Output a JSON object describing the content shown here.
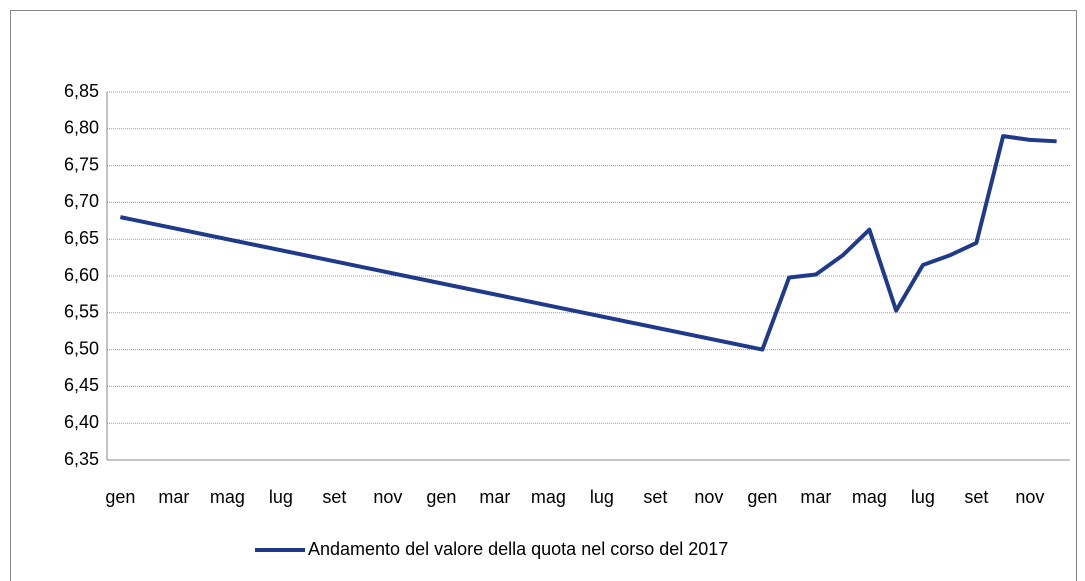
{
  "chart_data": {
    "type": "line",
    "categories": [
      "gen",
      null,
      "mar",
      null,
      "mag",
      null,
      "lug",
      null,
      "set",
      null,
      "nov",
      null,
      "gen",
      null,
      "mar",
      null,
      "mag",
      null,
      "lug",
      null,
      "set",
      null,
      "nov",
      null,
      "gen",
      null,
      "mar",
      null,
      "mag",
      null,
      "lug",
      null,
      "set",
      null,
      "nov",
      null
    ],
    "series": [
      {
        "name": "Andamento del valore della quota nel corso del 2017",
        "color": "#1f3a8a",
        "values": [
          6.68,
          null,
          null,
          null,
          null,
          null,
          null,
          null,
          null,
          null,
          null,
          null,
          null,
          null,
          null,
          null,
          null,
          null,
          null,
          null,
          null,
          null,
          null,
          null,
          6.5,
          6.598,
          6.602,
          6.628,
          6.663,
          6.553,
          6.615,
          6.628,
          6.645,
          6.79,
          6.785,
          6.783
        ]
      }
    ],
    "span_gaps": true,
    "ylim": [
      6.35,
      6.85
    ],
    "yticks": [
      {
        "value": 6.35,
        "label": "6,35"
      },
      {
        "value": 6.4,
        "label": "6,40"
      },
      {
        "value": 6.45,
        "label": "6,45"
      },
      {
        "value": 6.5,
        "label": "6,50"
      },
      {
        "value": 6.55,
        "label": "6,55"
      },
      {
        "value": 6.6,
        "label": "6,60"
      },
      {
        "value": 6.65,
        "label": "6,65"
      },
      {
        "value": 6.7,
        "label": "6,70"
      },
      {
        "value": 6.75,
        "label": "6,75"
      },
      {
        "value": 6.8,
        "label": "6,80"
      },
      {
        "value": 6.85,
        "label": "6,85"
      }
    ],
    "grid": true,
    "legend": "bottom"
  }
}
